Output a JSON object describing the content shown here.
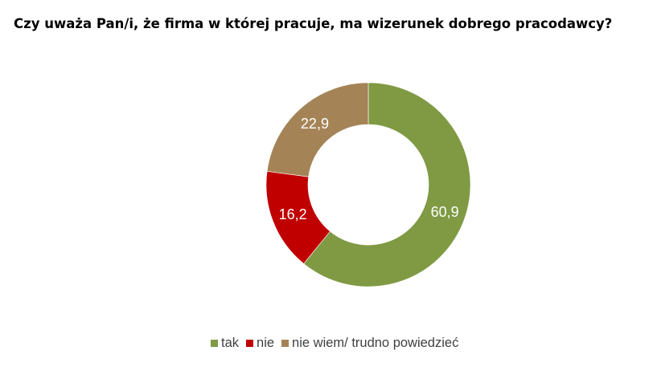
{
  "question": "Czy uważa Pan/i, że firma w której pracuje, ma wizerunek dobrego pracodawcy?",
  "chart_data": {
    "type": "pie",
    "style": "donut",
    "title": "",
    "categories": [
      "tak",
      "nie",
      "nie wiem/ trudno powiedzieć"
    ],
    "values": [
      60.9,
      16.2,
      22.9
    ],
    "value_labels": [
      "60,9",
      "16,2",
      "22,9"
    ],
    "colors": [
      "#7f9a43",
      "#c00000",
      "#a48457"
    ],
    "legend": "bottom"
  }
}
